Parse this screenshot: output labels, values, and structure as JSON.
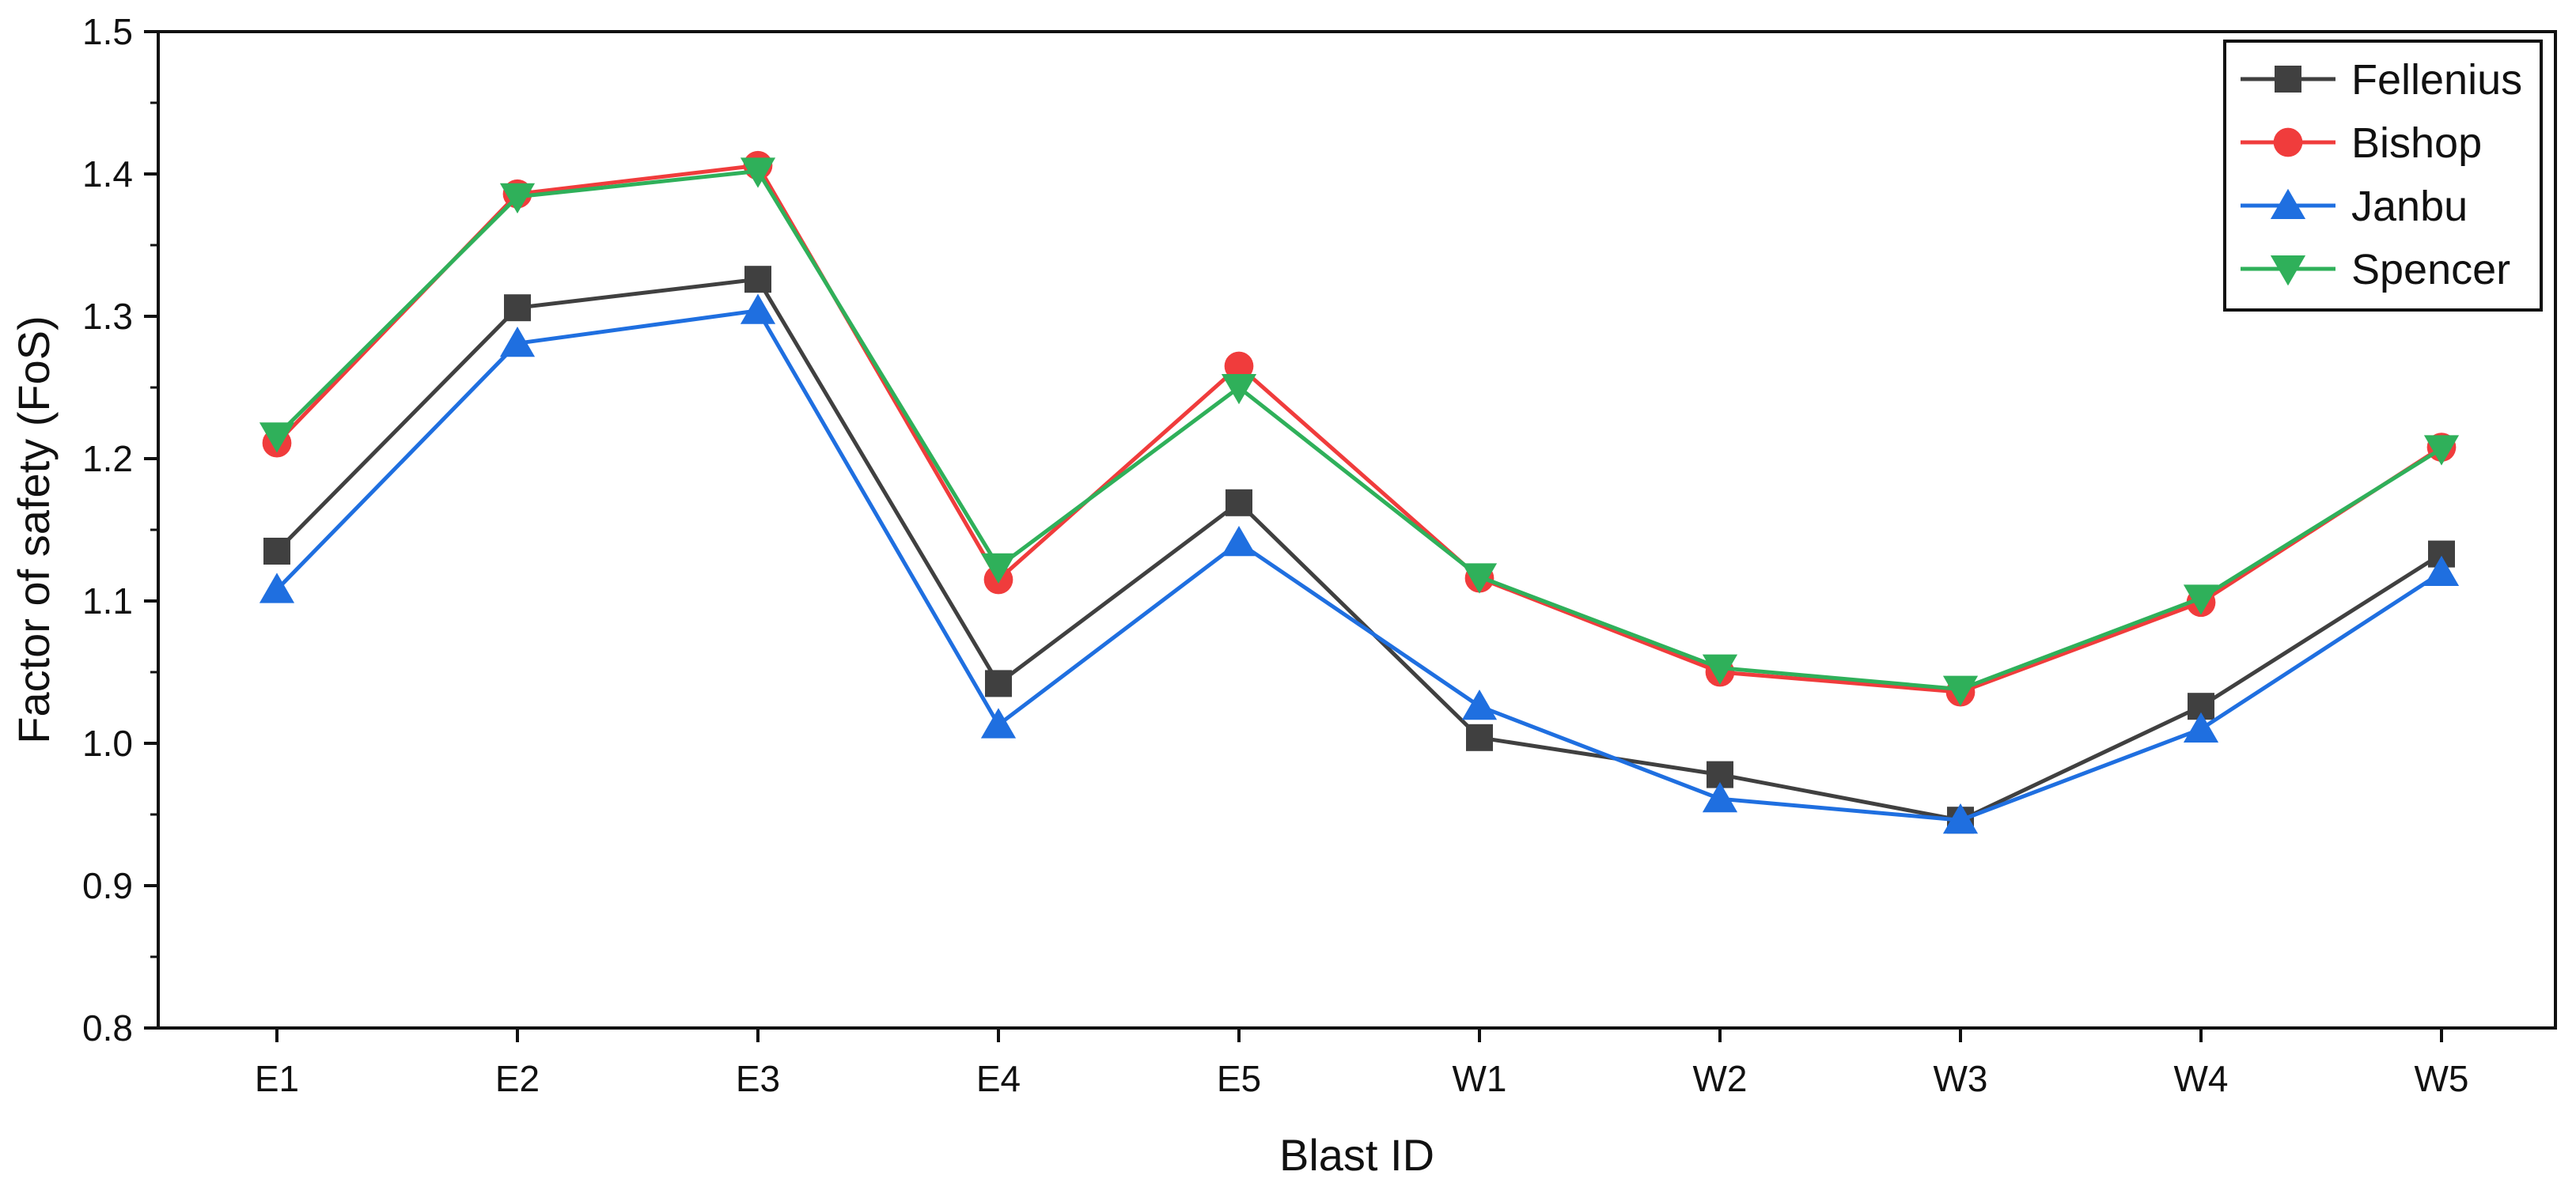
{
  "chart_data": {
    "type": "line",
    "title": "",
    "xlabel": "Blast ID",
    "ylabel": "Factor of safety (FoS)",
    "categories": [
      "E1",
      "E2",
      "E3",
      "E4",
      "E5",
      "W1",
      "W2",
      "W3",
      "W4",
      "W5"
    ],
    "ylim": [
      0.8,
      1.5
    ],
    "yticks": [
      0.8,
      0.9,
      1.0,
      1.1,
      1.2,
      1.3,
      1.4,
      1.5
    ],
    "ytick_labels": [
      "0.8",
      "0.9",
      "1.0",
      "1.1",
      "1.2",
      "1.3",
      "1.4",
      "1.5"
    ],
    "grid": false,
    "legend_position": "top-right",
    "series": [
      {
        "name": "Fellenius",
        "marker": "square",
        "color": "#404040",
        "values": [
          1.135,
          1.306,
          1.326,
          1.042,
          1.169,
          1.004,
          0.978,
          0.946,
          1.026,
          1.133
        ]
      },
      {
        "name": "Bishop",
        "marker": "circle",
        "color": "#f03c3c",
        "values": [
          1.211,
          1.386,
          1.406,
          1.115,
          1.265,
          1.116,
          1.05,
          1.036,
          1.099,
          1.208
        ]
      },
      {
        "name": "Janbu",
        "marker": "triangle-up",
        "color": "#1f6fe0",
        "values": [
          1.108,
          1.281,
          1.304,
          1.013,
          1.141,
          1.026,
          0.961,
          0.946,
          1.01,
          1.12
        ]
      },
      {
        "name": "Spencer",
        "marker": "triangle-down",
        "color": "#2fb05a",
        "values": [
          1.216,
          1.384,
          1.402,
          1.124,
          1.25,
          1.117,
          1.053,
          1.038,
          1.102,
          1.207
        ]
      }
    ]
  }
}
